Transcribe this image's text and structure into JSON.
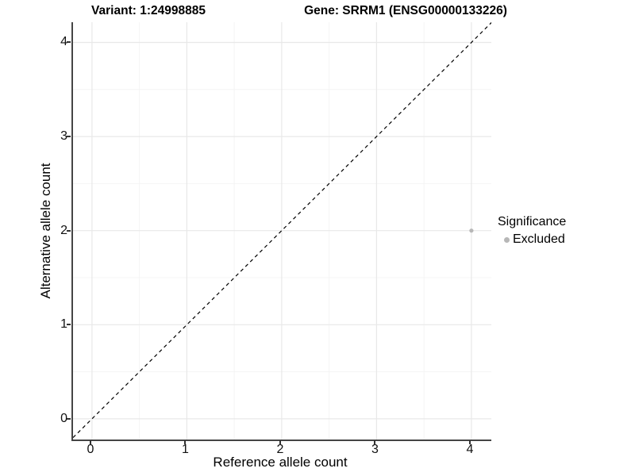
{
  "titles": {
    "variant": "Variant: 1:24998885",
    "gene": "Gene: SRRM1 (ENSG00000133226)"
  },
  "chart_data": {
    "type": "scatter",
    "xlabel": "Reference allele count",
    "ylabel": "Alternative allele count",
    "xlim": [
      -0.2,
      4.21
    ],
    "ylim": [
      -0.22,
      4.215
    ],
    "xticks": [
      0,
      1,
      2,
      3,
      4
    ],
    "yticks": [
      0,
      1,
      2,
      3,
      4
    ],
    "xtick_labels": [
      "0",
      "1",
      "2",
      "3",
      "4"
    ],
    "ytick_labels": [
      "0",
      "1",
      "2",
      "3",
      "4"
    ],
    "grid": "major and minor, light gray on white",
    "identity_line": {
      "style": "dashed",
      "x1": -0.2,
      "y1": -0.2,
      "x2": 4.215,
      "y2": 4.215,
      "color": "#000000"
    },
    "series": [
      {
        "name": "Excluded",
        "color": "#b7b7b7",
        "points": [
          {
            "x": 4,
            "y": 2
          }
        ]
      }
    ],
    "legend": {
      "title": "Significance",
      "position": "right",
      "entries": [
        {
          "label": "Excluded",
          "color": "#b7b7b7"
        }
      ]
    }
  },
  "colors": {
    "background": "#ffffff",
    "axis_line": "#454545",
    "tick_text": "#111111",
    "grid_major": "#e8e8e8",
    "grid_minor": "#f4f4f4",
    "point_gray": "#b7b7b7",
    "dashed_line": "#000000"
  }
}
